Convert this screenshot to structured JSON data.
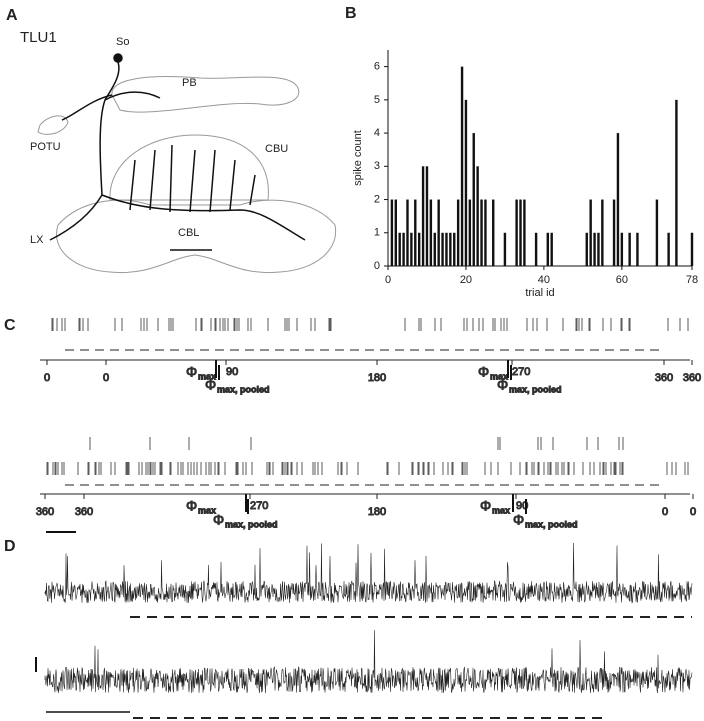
{
  "panel_labels": [
    "A",
    "B",
    "C",
    "D"
  ],
  "panel_a": {
    "title": "TLU1",
    "regions": [
      "So",
      "PB",
      "POTU",
      "CBU",
      "LX",
      "CBL"
    ]
  },
  "chart_data": {
    "type": "bar",
    "xlabel": "trial id",
    "ylabel": "spike count",
    "x": [
      1,
      2,
      3,
      4,
      5,
      6,
      7,
      8,
      9,
      10,
      11,
      12,
      13,
      14,
      15,
      16,
      17,
      18,
      19,
      20,
      21,
      22,
      23,
      24,
      25,
      27,
      30,
      33,
      34,
      35,
      38,
      41,
      42,
      51,
      52,
      53,
      54,
      55,
      58,
      59,
      60,
      62,
      64,
      69,
      72,
      74,
      78
    ],
    "values": [
      2,
      2,
      1,
      1,
      2,
      1,
      2,
      1,
      3,
      3,
      2,
      1,
      2,
      1,
      1,
      1,
      1,
      2,
      6,
      5,
      2,
      4,
      3,
      2,
      2,
      2,
      1,
      2,
      2,
      2,
      1,
      1,
      1,
      1,
      2,
      1,
      1,
      2,
      2,
      4,
      1,
      1,
      1,
      2,
      1,
      5,
      1
    ],
    "color": "#111111",
    "xlim": [
      0,
      78
    ],
    "xticks": [
      0,
      20,
      40,
      60,
      78
    ],
    "ylim": [
      0,
      6.5
    ],
    "yticks": [
      0,
      1,
      2,
      3,
      4,
      5,
      6
    ]
  },
  "panel_c": {
    "row1_ticks": [
      "0",
      "0",
      "90",
      "180",
      "270",
      "360",
      "360"
    ],
    "row2_ticks": [
      "360",
      "360",
      "270",
      "180",
      "90",
      "0",
      "0"
    ],
    "phi": "Φ",
    "max": "max",
    "pooled": "max, pooled"
  }
}
